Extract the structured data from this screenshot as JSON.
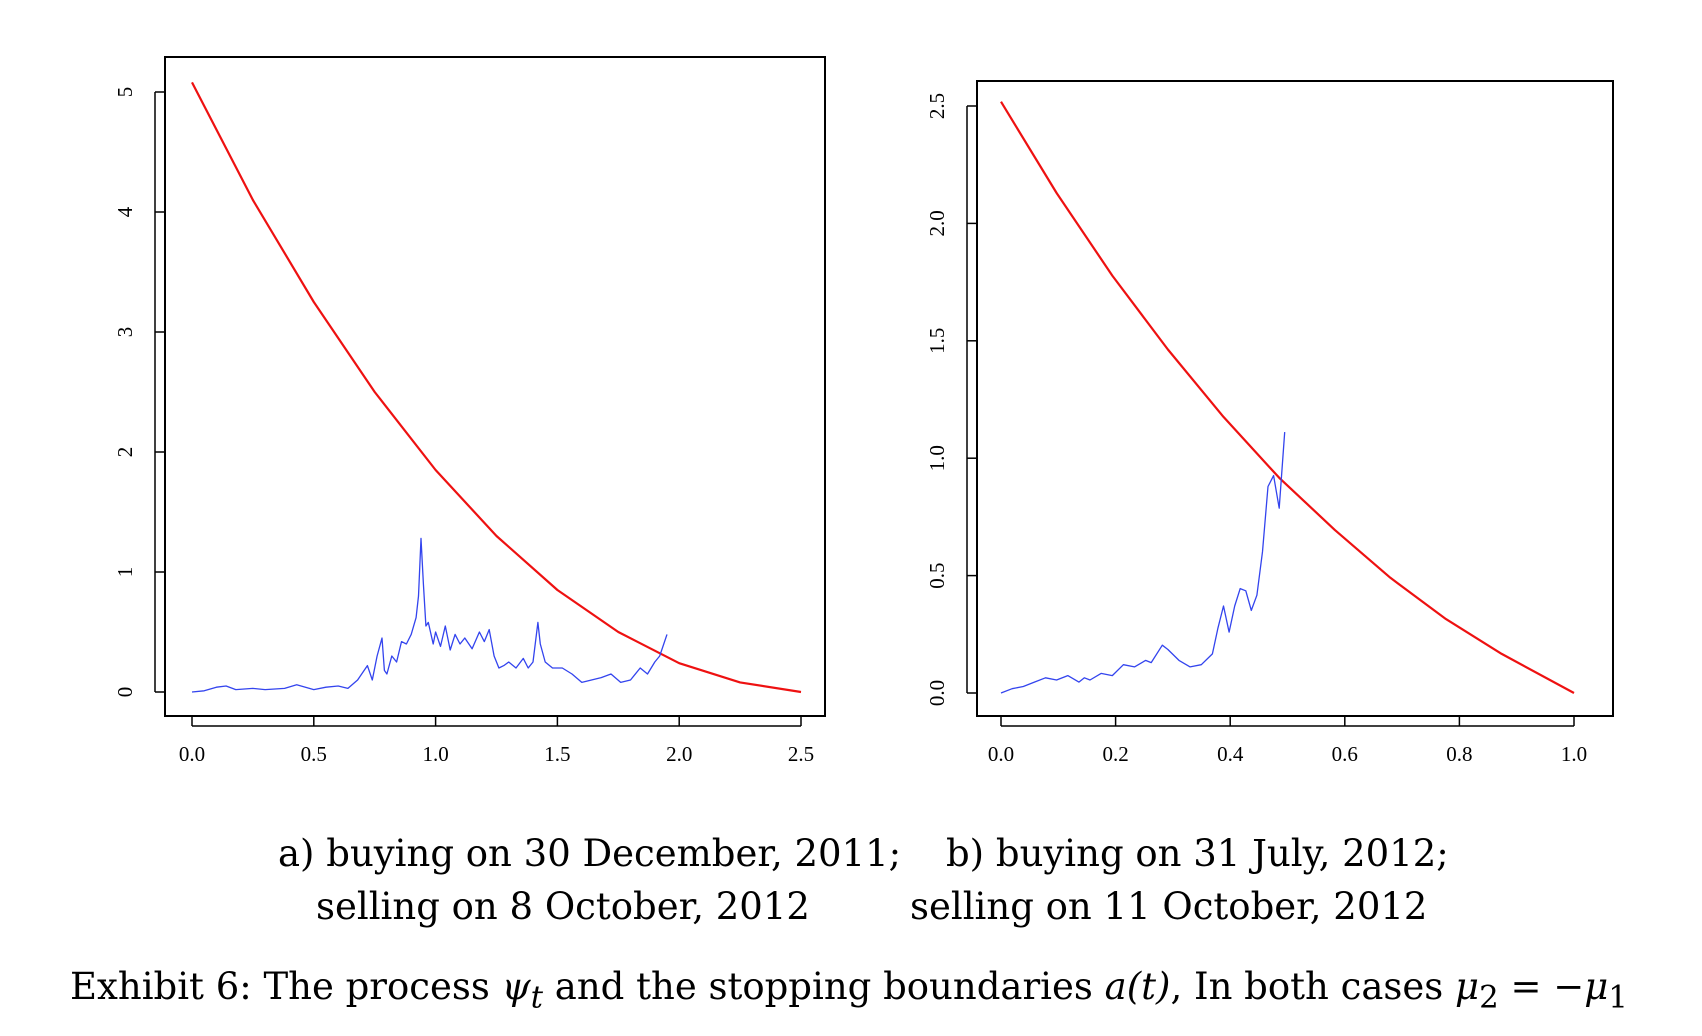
{
  "chart_data": [
    {
      "type": "line",
      "id": "a",
      "xlim": [
        0,
        2.5
      ],
      "ylim": [
        0,
        5
      ],
      "x_ticks": [
        "0.0",
        "0.5",
        "1.0",
        "1.5",
        "2.0",
        "2.5"
      ],
      "y_ticks": [
        "0",
        "1",
        "2",
        "3",
        "4",
        "5"
      ],
      "grid": false,
      "series": [
        {
          "color": "#ee1111",
          "x": [
            0,
            0.25,
            0.5,
            0.75,
            1.0,
            1.25,
            1.5,
            1.75,
            2.0,
            2.25,
            2.5
          ],
          "y": [
            5.08,
            4.1,
            3.25,
            2.5,
            1.85,
            1.3,
            0.85,
            0.5,
            0.24,
            0.08,
            0.0
          ]
        },
        {
          "color": "#3344ee",
          "x": [
            0,
            0.05,
            0.1,
            0.14,
            0.18,
            0.25,
            0.3,
            0.38,
            0.43,
            0.5,
            0.55,
            0.6,
            0.64,
            0.68,
            0.72,
            0.74,
            0.76,
            0.78,
            0.79,
            0.8,
            0.82,
            0.84,
            0.86,
            0.88,
            0.9,
            0.92,
            0.93,
            0.94,
            0.95,
            0.96,
            0.97,
            0.99,
            1.0,
            1.02,
            1.04,
            1.06,
            1.08,
            1.1,
            1.12,
            1.15,
            1.18,
            1.2,
            1.22,
            1.24,
            1.26,
            1.28,
            1.3,
            1.33,
            1.36,
            1.38,
            1.4,
            1.42,
            1.43,
            1.45,
            1.48,
            1.52,
            1.56,
            1.6,
            1.64,
            1.68,
            1.72,
            1.76,
            1.8,
            1.84,
            1.87,
            1.9,
            1.92,
            1.95
          ],
          "y": [
            0.0,
            0.01,
            0.04,
            0.05,
            0.02,
            0.03,
            0.02,
            0.03,
            0.06,
            0.02,
            0.04,
            0.05,
            0.03,
            0.1,
            0.22,
            0.1,
            0.3,
            0.45,
            0.18,
            0.15,
            0.3,
            0.25,
            0.42,
            0.4,
            0.48,
            0.62,
            0.8,
            1.28,
            0.9,
            0.55,
            0.58,
            0.4,
            0.5,
            0.38,
            0.55,
            0.35,
            0.48,
            0.4,
            0.45,
            0.36,
            0.5,
            0.42,
            0.52,
            0.3,
            0.2,
            0.22,
            0.25,
            0.2,
            0.28,
            0.2,
            0.25,
            0.58,
            0.4,
            0.25,
            0.2,
            0.2,
            0.15,
            0.08,
            0.1,
            0.12,
            0.15,
            0.08,
            0.1,
            0.2,
            0.15,
            0.25,
            0.3,
            0.48
          ]
        }
      ]
    },
    {
      "type": "line",
      "id": "b",
      "xlim": [
        0,
        1.03
      ],
      "ylim": [
        0,
        2.7
      ],
      "x_ticks": [
        "0.0",
        "0.2",
        "0.4",
        "0.6",
        "0.8",
        "1.0"
      ],
      "y_ticks": [
        "0.0",
        "0.5",
        "1.0",
        "1.5",
        "2.0",
        "2.5"
      ],
      "grid": false,
      "series": [
        {
          "color": "#ee1111",
          "x": [
            0,
            0.1,
            0.2,
            0.3,
            0.4,
            0.5,
            0.6,
            0.7,
            0.8,
            0.9,
            1.03
          ],
          "y": [
            2.72,
            2.3,
            1.92,
            1.58,
            1.27,
            0.99,
            0.75,
            0.53,
            0.34,
            0.18,
            0.0
          ]
        },
        {
          "color": "#3344ee",
          "x": [
            0,
            0.02,
            0.04,
            0.06,
            0.08,
            0.1,
            0.12,
            0.14,
            0.15,
            0.16,
            0.18,
            0.2,
            0.22,
            0.24,
            0.26,
            0.27,
            0.29,
            0.3,
            0.32,
            0.34,
            0.36,
            0.38,
            0.39,
            0.4,
            0.41,
            0.42,
            0.43,
            0.44,
            0.45,
            0.46,
            0.47,
            0.48,
            0.49,
            0.5,
            0.51
          ],
          "y": [
            0.0,
            0.02,
            0.03,
            0.05,
            0.07,
            0.06,
            0.08,
            0.05,
            0.07,
            0.06,
            0.09,
            0.08,
            0.13,
            0.12,
            0.15,
            0.14,
            0.22,
            0.2,
            0.15,
            0.12,
            0.13,
            0.18,
            0.3,
            0.4,
            0.28,
            0.4,
            0.48,
            0.47,
            0.38,
            0.45,
            0.65,
            0.95,
            1.0,
            0.85,
            1.2
          ]
        }
      ]
    }
  ],
  "captions": {
    "a_line1": "a) buying on 30 December, 2011;",
    "a_line2": "selling on 8 October, 2012",
    "b_line1": "b) buying on 31 July, 2012;",
    "b_line2": "selling on 11 October, 2012",
    "exhibit": {
      "prefix": "Exhibit 6: The process ",
      "psi": "ψ",
      "psi_sub": "t",
      "middle": " and the stopping boundaries ",
      "a_t": "a(t)",
      "suffix": ", In both cases ",
      "mu2": "μ",
      "mu2_sub": "2",
      "equals": " = −",
      "mu1": "μ",
      "mu1_sub": "1"
    }
  }
}
